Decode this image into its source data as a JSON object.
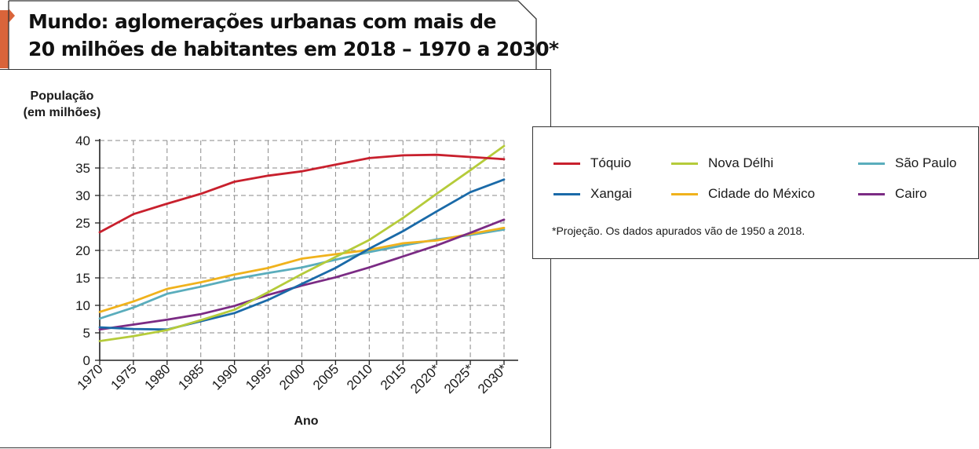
{
  "header": {
    "title_line1": "Mundo: aglomerações urbanas com mais de",
    "title_line2": "20 milhões de habitantes em 2018 – 1970 a 2030*"
  },
  "legend": {
    "footnote": "*Projeção. Os dados apurados vão de 1950 a 2018."
  },
  "colors": {
    "accent_tab": "#d9643a"
  },
  "chart_data": {
    "type": "line",
    "title": "Mundo: aglomerações urbanas com mais de 20 milhões de habitantes em 2018 – 1970 a 2030*",
    "ylabel_line1": "População",
    "ylabel_line2": "(em milhões)",
    "xlabel": "Ano",
    "categories": [
      "1970",
      "1975",
      "1980",
      "1985",
      "1990",
      "1995",
      "2000",
      "2005",
      "2010",
      "2015",
      "2020*",
      "2025*",
      "2030*"
    ],
    "yticks": [
      "0",
      "5",
      "10",
      "15",
      "20",
      "25",
      "30",
      "35",
      "40"
    ],
    "ylim": [
      0,
      40
    ],
    "grid": true,
    "legend_position": "right",
    "series": [
      {
        "name": "Tóquio",
        "color": "#c8202d",
        "values": [
          23.3,
          26.6,
          28.5,
          30.3,
          32.5,
          33.6,
          34.4,
          35.6,
          36.8,
          37.3,
          37.4,
          37.0,
          36.6
        ]
      },
      {
        "name": "Xangai",
        "color": "#1a6aa8",
        "values": [
          6.0,
          5.7,
          5.6,
          7.1,
          8.6,
          11.0,
          13.9,
          16.8,
          20.3,
          23.5,
          27.1,
          30.6,
          32.9
        ]
      },
      {
        "name": "Nova Délhi",
        "color": "#b5cb3a",
        "values": [
          3.5,
          4.4,
          5.5,
          7.3,
          9.2,
          12.4,
          15.7,
          18.8,
          21.9,
          25.9,
          30.3,
          34.6,
          39.0
        ]
      },
      {
        "name": "Cidade do México",
        "color": "#f0b21c",
        "values": [
          8.8,
          10.7,
          13.0,
          14.2,
          15.6,
          16.8,
          18.5,
          19.3,
          20.1,
          21.3,
          21.8,
          23.0,
          24.1
        ]
      },
      {
        "name": "São Paulo",
        "color": "#5aadbc",
        "values": [
          7.6,
          9.6,
          12.1,
          13.4,
          14.8,
          15.9,
          16.9,
          18.3,
          19.7,
          20.9,
          22.0,
          22.8,
          23.8
        ]
      },
      {
        "name": "Cairo",
        "color": "#7b2b84",
        "values": [
          5.6,
          6.5,
          7.4,
          8.4,
          9.9,
          11.9,
          13.6,
          15.1,
          16.9,
          18.9,
          20.9,
          23.2,
          25.6
        ]
      }
    ]
  }
}
